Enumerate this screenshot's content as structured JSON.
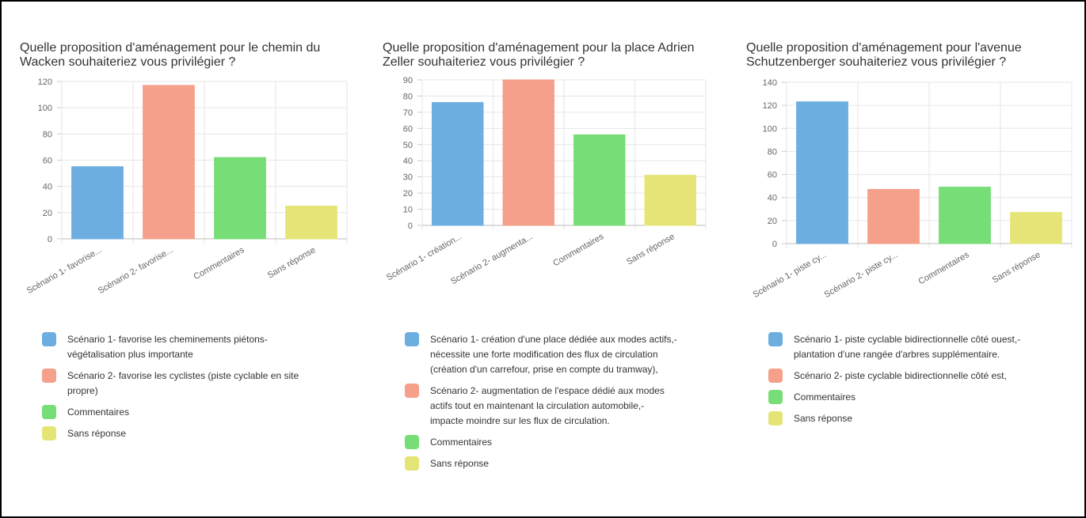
{
  "chart_data": [
    {
      "type": "bar",
      "title": "Quelle proposition d'aménagement pour le chemin du Wacken souhaiteriez vous privilégier ?",
      "categories": [
        "Scénario 1- favorise...",
        "Scénario 2- favorise...",
        "Commentaires",
        "Sans réponse"
      ],
      "values": [
        55,
        117,
        62,
        25
      ],
      "colors": [
        "#6caee0",
        "#f4a08a",
        "#77dd77",
        "#e5e577"
      ],
      "legend": [
        "Scénario 1- favorise les cheminements piétons- végétalisation plus importante",
        "Scénario 2- favorise les cyclistes (piste cyclable en site propre)",
        "Commentaires",
        "Sans réponse"
      ],
      "ylim": [
        0,
        120
      ],
      "yticks": [
        0,
        20,
        40,
        60,
        80,
        100,
        120
      ],
      "grid": true
    },
    {
      "type": "bar",
      "title": "Quelle proposition d'aménagement pour la place Adrien Zeller souhaiteriez vous privilégier ?",
      "categories": [
        "Scénario 1- création...",
        "Scénario 2- augmenta...",
        "Commentaires",
        "Sans réponse"
      ],
      "values": [
        76,
        90,
        56,
        31
      ],
      "colors": [
        "#6caee0",
        "#f4a08a",
        "#77dd77",
        "#e5e577"
      ],
      "legend": [
        "Scénario 1- création d'une place dédiée aux modes actifs,- nécessite une forte modification des flux de circulation (création d'un carrefour, prise en compte du tramway),",
        "Scénario 2- augmentation de l'espace dédié aux modes actifs tout en maintenant la circulation automobile,- impacte moindre sur les flux de circulation.",
        "Commentaires",
        "Sans réponse"
      ],
      "ylim": [
        0,
        90
      ],
      "yticks": [
        0,
        10,
        20,
        30,
        40,
        50,
        60,
        70,
        80,
        90
      ],
      "grid": true
    },
    {
      "type": "bar",
      "title": "Quelle proposition d'aménagement pour l'avenue Schutzenberger souhaiteriez vous privilégier ?",
      "categories": [
        "Scénario 1- piste cy...",
        "Scénario 2- piste cy...",
        "Commentaires",
        "Sans réponse"
      ],
      "values": [
        123,
        47,
        49,
        27
      ],
      "colors": [
        "#6caee0",
        "#f4a08a",
        "#77dd77",
        "#e5e577"
      ],
      "legend": [
        "Scénario 1- piste cyclable bidirectionnelle côté ouest,- plantation d'une rangée d'arbres supplémentaire.",
        "Scénario 2- piste cyclable bidirectionnelle côté est,",
        "Commentaires",
        "Sans réponse"
      ],
      "ylim": [
        0,
        140
      ],
      "yticks": [
        0,
        20,
        40,
        60,
        80,
        100,
        120,
        140
      ],
      "grid": true
    }
  ]
}
